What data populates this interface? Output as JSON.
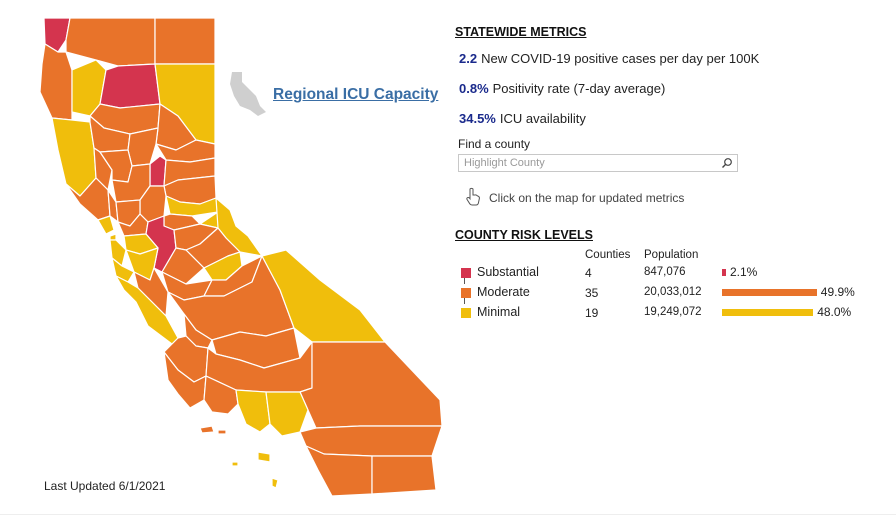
{
  "map": {
    "region_link": "Regional ICU Capacity",
    "last_updated": "Last Updated 6/1/2021",
    "colors": {
      "substantial": "#d4344e",
      "moderate": "#e8732a",
      "minimal": "#f0be0c",
      "locator": "#cfcfcf"
    }
  },
  "statewide": {
    "title": "STATEWIDE METRICS",
    "metrics": [
      {
        "value": "2.2",
        "label": "New COVID-19 positive cases per day per 100K"
      },
      {
        "value": "0.8%",
        "label": "Positivity rate (7-day average)"
      },
      {
        "value": "34.5%",
        "label": "ICU availability"
      }
    ]
  },
  "search": {
    "label": "Find a county",
    "placeholder": "Highlight County",
    "icon": "search-icon"
  },
  "hint": {
    "icon": "hand-pointer-icon",
    "text": "Click on the map for updated metrics"
  },
  "risk": {
    "title": "COUNTY RISK LEVELS",
    "headers": {
      "counties": "Counties",
      "population": "Population"
    },
    "levels": [
      {
        "name": "Substantial",
        "counties": "4",
        "population": "847,076",
        "percent": "2.1%",
        "share": 0.021,
        "color": "#d4344e"
      },
      {
        "name": "Moderate",
        "counties": "35",
        "population": "20,033,012",
        "percent": "49.9%",
        "share": 0.499,
        "color": "#e8732a"
      },
      {
        "name": "Minimal",
        "counties": "19",
        "population": "19,249,072",
        "percent": "48.0%",
        "share": 0.48,
        "color": "#f0be0c"
      }
    ]
  }
}
